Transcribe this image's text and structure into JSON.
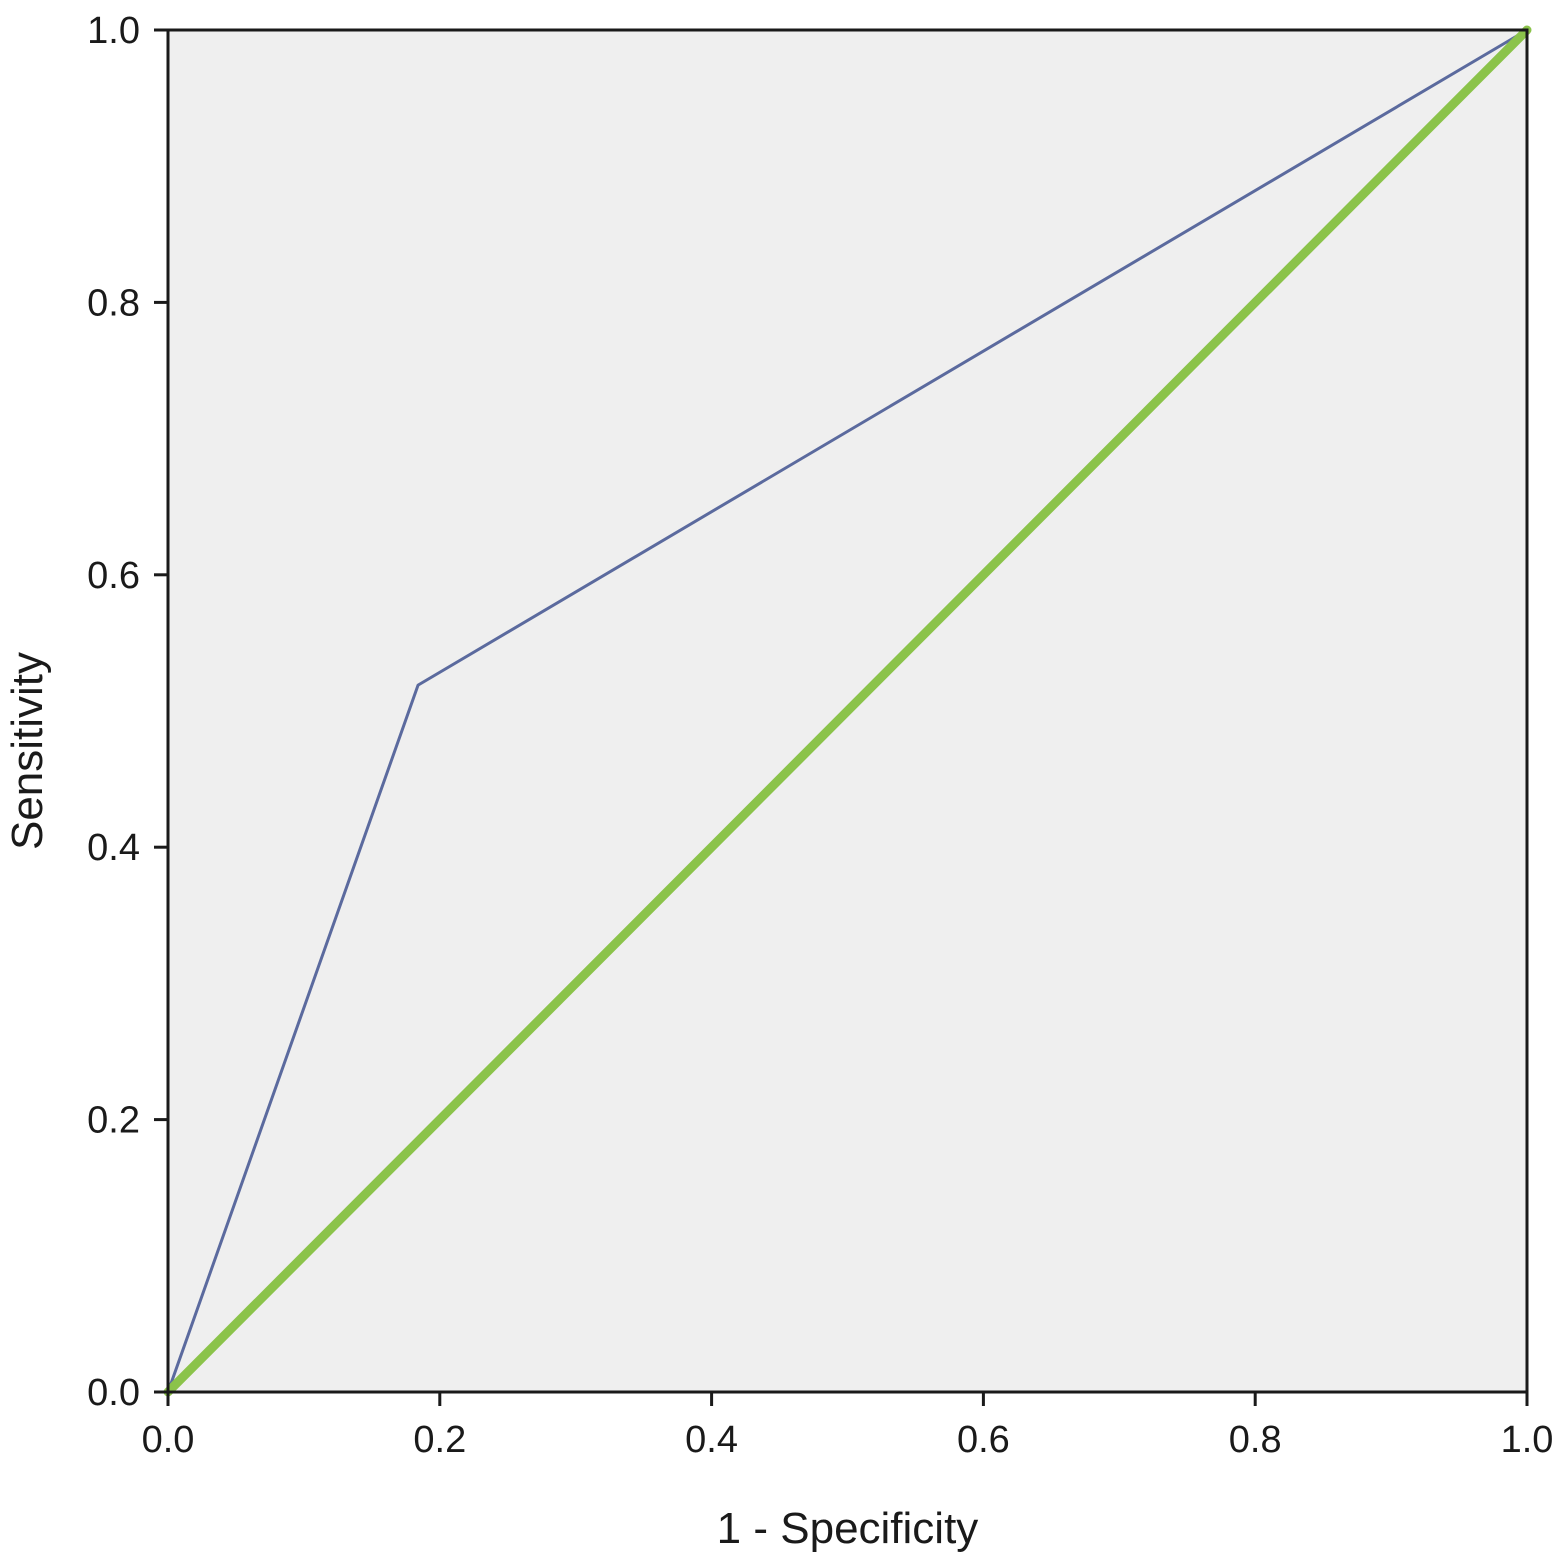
{
  "chart_data": {
    "type": "line",
    "xlabel": "1 - Specificity",
    "ylabel": "Sensitivity",
    "xlim": [
      0.0,
      1.0
    ],
    "ylim": [
      0.0,
      1.0
    ],
    "x_ticks": [
      "0.0",
      "0.2",
      "0.4",
      "0.6",
      "0.8",
      "1.0"
    ],
    "y_ticks": [
      "0.0",
      "0.2",
      "0.4",
      "0.6",
      "0.8",
      "1.0"
    ],
    "grid": false,
    "plot_background": "#efefef",
    "series": [
      {
        "color": "#5b6a9e",
        "points": [
          [
            0.0,
            0.0
          ],
          [
            0.184,
            0.519
          ],
          [
            1.0,
            1.0
          ]
        ]
      },
      {
        "color": "#8bc34a",
        "points": [
          [
            0.0,
            0.0
          ],
          [
            1.0,
            1.0
          ]
        ]
      }
    ]
  }
}
